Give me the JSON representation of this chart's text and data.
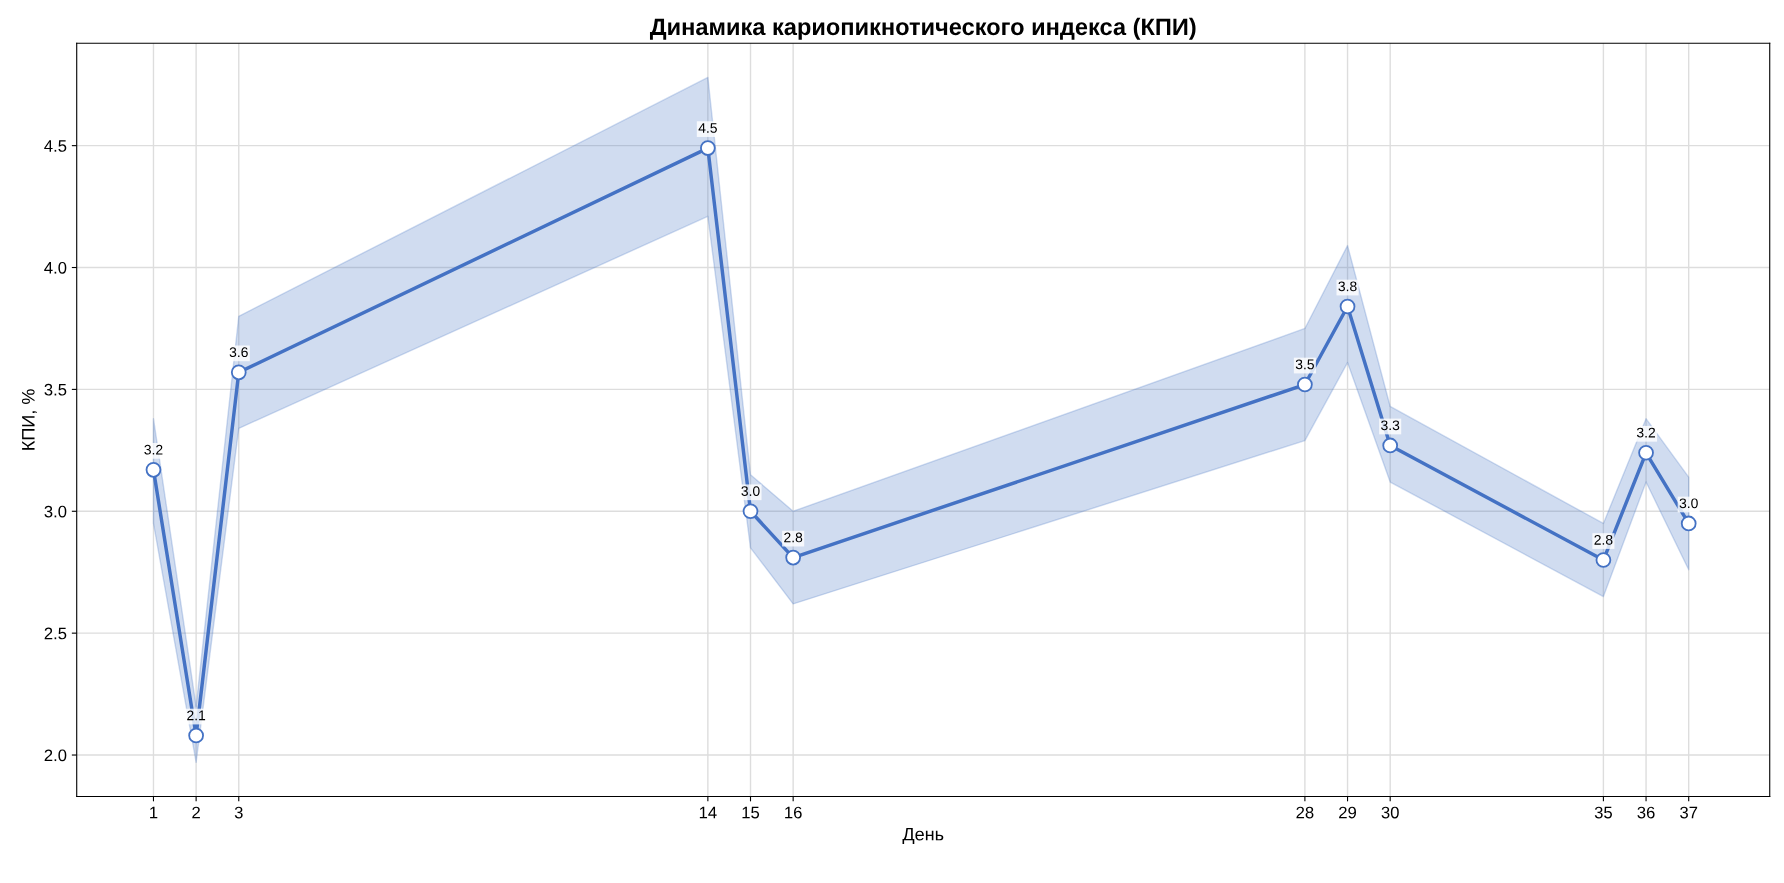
{
  "chart_data": {
    "type": "line",
    "title": "Динамика кариопикнотического индекса (КПИ)",
    "xlabel": "День",
    "ylabel": "КПИ, %",
    "x": [
      1,
      2,
      3,
      14,
      15,
      16,
      28,
      29,
      30,
      35,
      36,
      37
    ],
    "series": [
      {
        "color": "#4472c4",
        "values": [
          3.17,
          2.08,
          3.57,
          4.49,
          3.0,
          2.81,
          3.52,
          3.84,
          3.27,
          2.8,
          3.24,
          2.95
        ],
        "lower": [
          2.95,
          1.97,
          3.34,
          4.21,
          2.85,
          2.62,
          3.29,
          3.61,
          3.12,
          2.65,
          3.12,
          2.76
        ],
        "upper": [
          3.38,
          2.2,
          3.8,
          4.78,
          3.15,
          3.0,
          3.75,
          4.09,
          3.43,
          2.95,
          3.38,
          3.14
        ],
        "value_labels": [
          "3.2",
          "2.1",
          "3.6",
          "4.5",
          "3.0",
          "2.8",
          "3.5",
          "3.8",
          "3.3",
          "2.8",
          "3.2",
          "3.0"
        ]
      }
    ],
    "xlim": [
      -0.8,
      38.9
    ],
    "xticks": [
      1,
      2,
      3,
      14,
      15,
      16,
      28,
      29,
      30,
      35,
      36,
      37
    ],
    "ylim": [
      1.83,
      4.92
    ],
    "yticks": [
      {
        "value": 2.0,
        "label": "2.0"
      },
      {
        "value": 2.5,
        "label": "2.5"
      },
      {
        "value": 3.0,
        "label": "3.0"
      },
      {
        "value": 3.5,
        "label": "3.5"
      },
      {
        "value": 4.0,
        "label": "4.0"
      },
      {
        "value": 4.5,
        "label": "4.5"
      }
    ],
    "grid": true,
    "marker": "circle",
    "line_style": "solid",
    "legend": false
  }
}
